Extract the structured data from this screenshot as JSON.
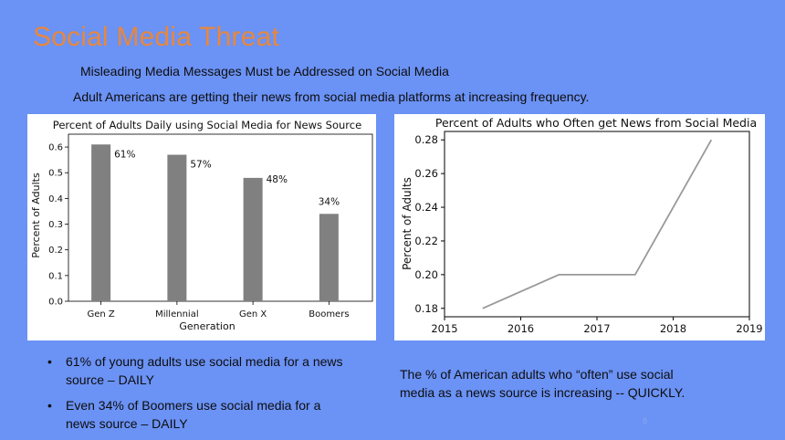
{
  "slide": {
    "title": "Social Media Threat",
    "subtitle": "Misleading Media Messages Must be Addressed on Social Media",
    "lead": "Adult Americans are getting their news from social media platforms at increasing frequency.",
    "bullets": [
      "61% of young adults use social media for a news source – DAILY",
      "Even 34% of Boomers use social media for a news source – DAILY"
    ],
    "note": "The % of American adults who “often” use social media as a news source is increasing -- QUICKLY.",
    "page_number": "8"
  },
  "colors": {
    "background": "#6b92f5",
    "title": "#e8873c",
    "bar": "#808080",
    "line": "#999999"
  },
  "chart_data": [
    {
      "type": "bar",
      "title": "Percent of Adults Daily using Social Media for News Source",
      "xlabel": "Generation",
      "ylabel": "Percent of Adults",
      "categories": [
        "Gen Z",
        "Millennial",
        "Gen X",
        "Boomers"
      ],
      "values": [
        0.61,
        0.57,
        0.48,
        0.34
      ],
      "data_labels": [
        "61%",
        "57%",
        "48%",
        "34%"
      ],
      "ylim": [
        0,
        0.65
      ],
      "yticks": [
        0.0,
        0.1,
        0.2,
        0.3,
        0.4,
        0.5,
        0.6
      ],
      "ytick_labels": [
        "0.0",
        "0.1",
        "0.2",
        "0.3",
        "0.4",
        "0.5",
        "0.6"
      ],
      "grid": false,
      "legend": "none"
    },
    {
      "type": "line",
      "title": "Percent of Adults who Often get News from Social Media",
      "xlabel": "",
      "ylabel": "Percent of Adults",
      "x": [
        2015.5,
        2016.5,
        2017.5,
        2018.5
      ],
      "y": [
        0.18,
        0.2,
        0.2,
        0.28
      ],
      "xlim": [
        2015,
        2019
      ],
      "ylim": [
        0.175,
        0.285
      ],
      "xticks": [
        2015,
        2016,
        2017,
        2018,
        2019
      ],
      "xtick_labels": [
        "2015",
        "2016",
        "2017",
        "2018",
        "2019"
      ],
      "yticks": [
        0.18,
        0.2,
        0.22,
        0.24,
        0.26,
        0.28
      ],
      "ytick_labels": [
        "0.18",
        "0.20",
        "0.22",
        "0.24",
        "0.26",
        "0.28"
      ],
      "grid": false,
      "legend": "none"
    }
  ]
}
